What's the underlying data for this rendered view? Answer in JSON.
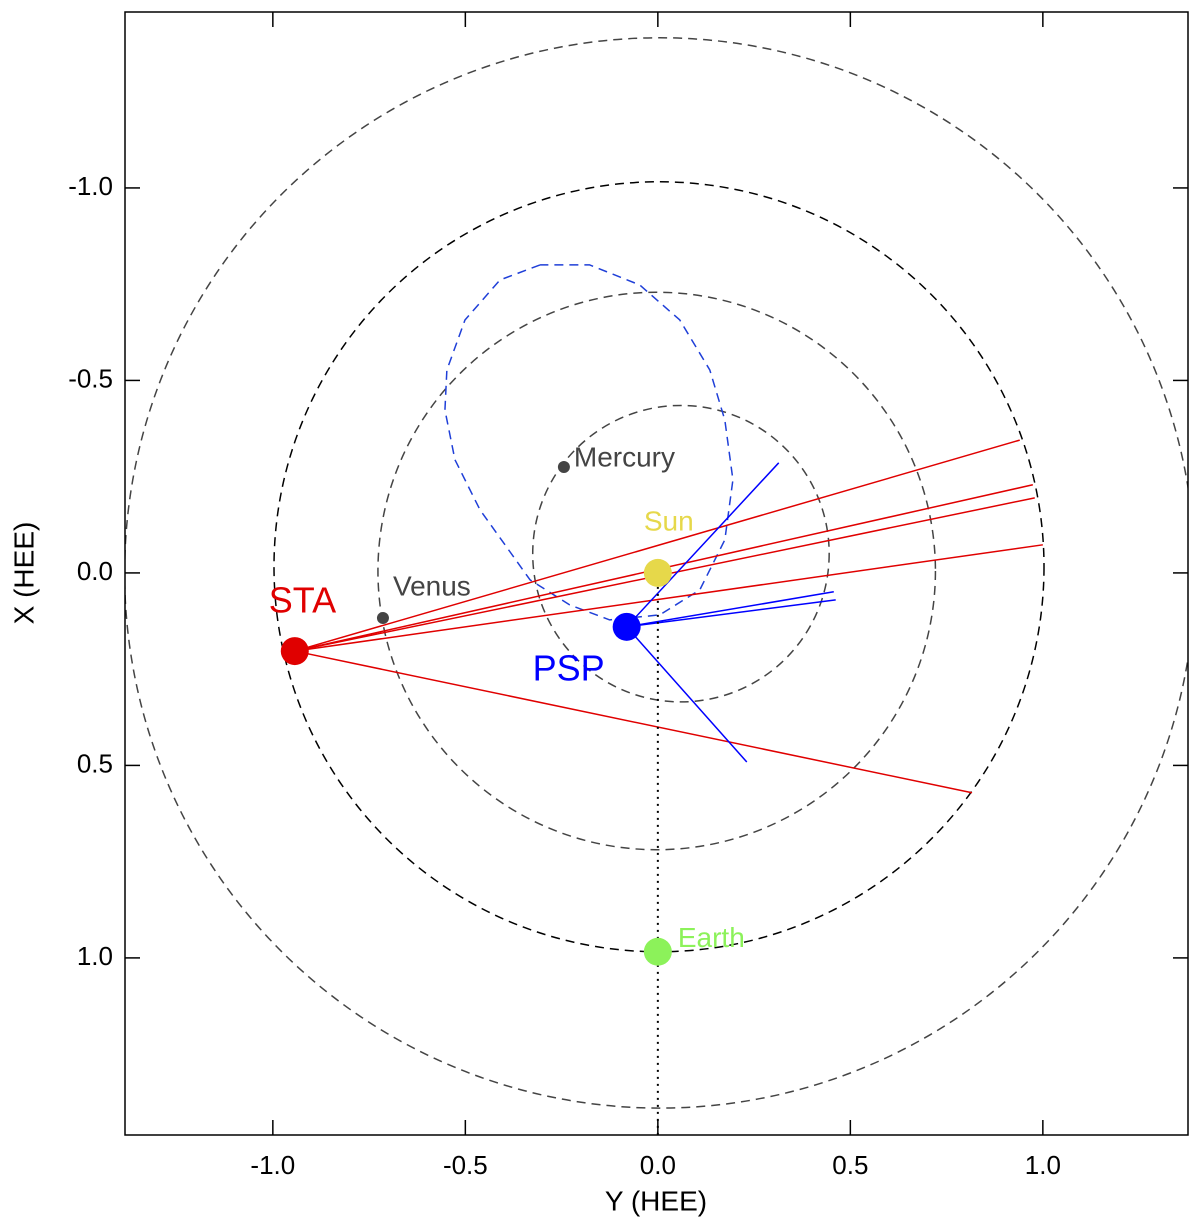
{
  "chart_data": {
    "type": "scatter",
    "xlabel": "Y (HEE)",
    "ylabel": "X (HEE)",
    "xlim": [
      -1.384,
      1.377
    ],
    "ylim": [
      1.46,
      -1.457
    ],
    "xticks": [
      {
        "value": -1.0,
        "label": "-1.0"
      },
      {
        "value": -0.5,
        "label": "-0.5"
      },
      {
        "value": 0.0,
        "label": "0.0"
      },
      {
        "value": 0.5,
        "label": "0.5"
      },
      {
        "value": 1.0,
        "label": "1.0"
      }
    ],
    "yticks": [
      {
        "value": -1.0,
        "label": "-1.0"
      },
      {
        "value": -0.5,
        "label": "-0.5"
      },
      {
        "value": 0.0,
        "label": "0.0"
      },
      {
        "value": 0.5,
        "label": "0.5"
      },
      {
        "value": 1.0,
        "label": "1.0"
      }
    ],
    "circles": [
      {
        "x": 0.005,
        "y": 0.0,
        "r": 1.39,
        "color": "#444444"
      },
      {
        "x": 0.003,
        "y": -0.016,
        "r": 1.0,
        "color": "#000000"
      },
      {
        "x": -0.003,
        "y": -0.005,
        "r": 0.724,
        "color": "#444444"
      },
      {
        "x": 0.06,
        "y": -0.05,
        "r": 0.385,
        "color": "#444444"
      }
    ],
    "psp_orbit": {
      "color": "#1f3fd8",
      "x": [
        -0.306,
        -0.41,
        -0.501,
        -0.548,
        -0.553,
        -0.527,
        -0.462,
        -0.332,
        -0.229,
        -0.125,
        0.005,
        0.109,
        0.174,
        0.195,
        0.174,
        0.135,
        0.057,
        -0.047,
        -0.177,
        -0.306
      ],
      "y": [
        -0.8,
        -0.761,
        -0.657,
        -0.527,
        -0.423,
        -0.294,
        -0.164,
        0.018,
        0.083,
        0.122,
        0.109,
        0.044,
        -0.086,
        -0.242,
        -0.397,
        -0.527,
        -0.657,
        -0.748,
        -0.8,
        -0.8
      ]
    },
    "lines": [
      {
        "color": "#e00000",
        "style": "solid",
        "x": [
          -0.943,
          0.94
        ],
        "y": [
          0.203,
          -0.345
        ]
      },
      {
        "color": "#e00000",
        "style": "solid",
        "x": [
          -0.943,
          0.974
        ],
        "y": [
          0.203,
          -0.229
        ]
      },
      {
        "color": "#e00000",
        "style": "solid",
        "x": [
          -0.943,
          0.979
        ],
        "y": [
          0.203,
          -0.195
        ]
      },
      {
        "color": "#e00000",
        "style": "solid",
        "x": [
          -0.943,
          1.0
        ],
        "y": [
          0.203,
          -0.073
        ]
      },
      {
        "color": "#e00000",
        "style": "solid",
        "x": [
          -0.943,
          0.816
        ],
        "y": [
          0.203,
          0.571
        ]
      },
      {
        "color": "#0000ff",
        "style": "solid",
        "x": [
          -0.081,
          0.314
        ],
        "y": [
          0.14,
          -0.286
        ]
      },
      {
        "color": "#0000ff",
        "style": "solid",
        "x": [
          -0.081,
          0.231
        ],
        "y": [
          0.14,
          0.491
        ]
      },
      {
        "color": "#0000ff",
        "style": "solid",
        "x": [
          -0.081,
          0.457
        ],
        "y": [
          0.14,
          0.049
        ]
      },
      {
        "color": "#0000ff",
        "style": "solid",
        "x": [
          -0.081,
          0.462
        ],
        "y": [
          0.14,
          0.07
        ]
      },
      {
        "color": "#000000",
        "style": "dotted",
        "x": [
          0.0,
          0.0
        ],
        "y": [
          0.0,
          1.46
        ]
      }
    ],
    "series": [
      {
        "name": "Sun",
        "color": "#e6d84a",
        "x": [
          0.0
        ],
        "values": [
          0.0
        ]
      },
      {
        "name": "Earth",
        "color": "#8cf25a",
        "x": [
          0.0
        ],
        "values": [
          0.984
        ]
      },
      {
        "name": "Mercury",
        "color": "#444444",
        "x": [
          -0.244
        ],
        "values": [
          -0.275
        ]
      },
      {
        "name": "Venus",
        "color": "#444444",
        "x": [
          -0.714
        ],
        "values": [
          0.117
        ]
      },
      {
        "name": "STA",
        "color": "#e00000",
        "x": [
          -0.943
        ],
        "values": [
          0.203
        ]
      },
      {
        "name": "PSP",
        "color": "#0000ff",
        "x": [
          -0.081
        ],
        "values": [
          0.14
        ]
      }
    ]
  }
}
